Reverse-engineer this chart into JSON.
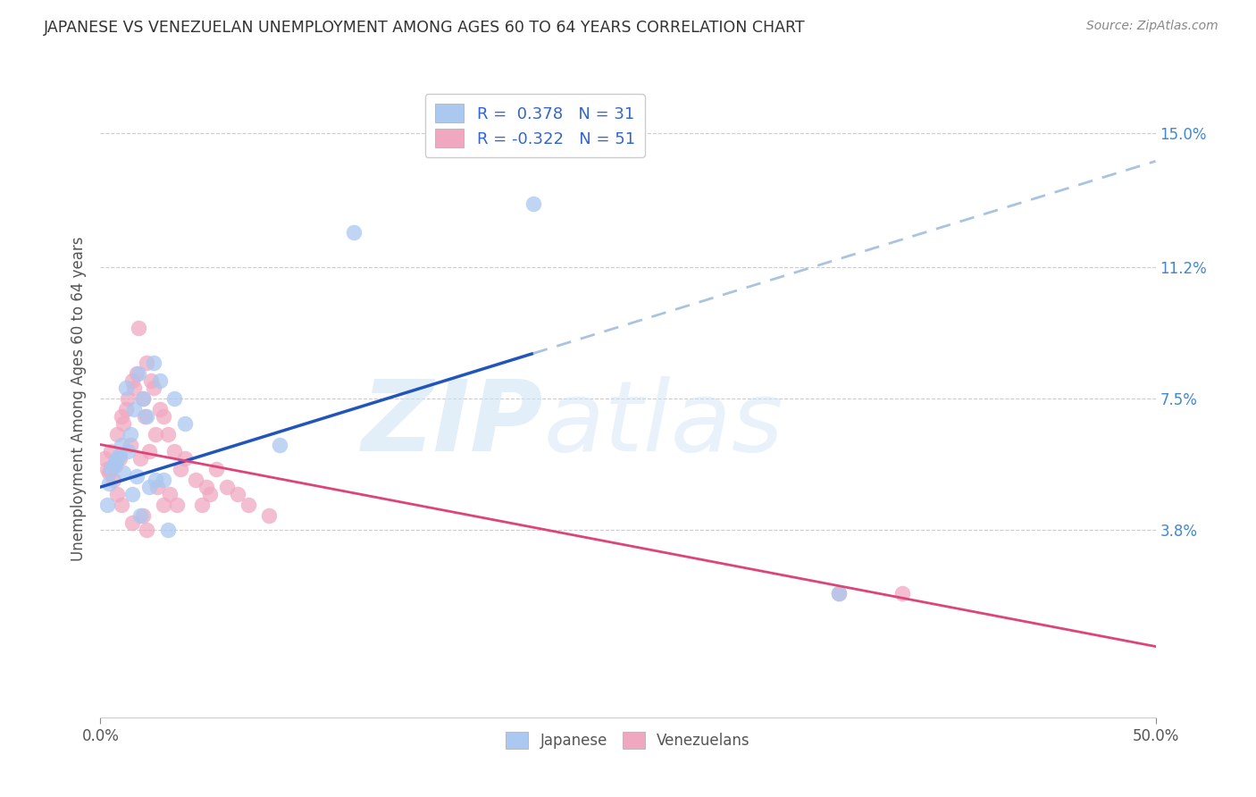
{
  "title": "JAPANESE VS VENEZUELAN UNEMPLOYMENT AMONG AGES 60 TO 64 YEARS CORRELATION CHART",
  "source": "Source: ZipAtlas.com",
  "ylabel": "Unemployment Among Ages 60 to 64 years",
  "ytick_values": [
    3.8,
    7.5,
    11.2,
    15.0
  ],
  "ytick_labels": [
    "3.8%",
    "7.5%",
    "11.2%",
    "15.0%"
  ],
  "xmin": 0.0,
  "xmax": 50.0,
  "ymin": -1.5,
  "ymax": 16.5,
  "legend_label1": "R =  0.378   N = 31",
  "legend_label2": "R = -0.322   N = 51",
  "watermark_zip": "ZIP",
  "watermark_atlas": "atlas",
  "japanese_color": "#aac8f0",
  "venezuelan_color": "#f0a8c0",
  "japanese_line_color": "#2255bb",
  "venezuelan_line_color": "#dd4477",
  "dashed_line_color": "#aac4e0",
  "background_color": "#ffffff",
  "grid_color": "#cccccc",
  "jap_line_x0": 0.0,
  "jap_line_y0": 5.0,
  "jap_line_x1": 50.0,
  "jap_line_y1": 14.2,
  "jap_solid_end": 20.5,
  "ven_line_x0": 0.0,
  "ven_line_y0": 6.2,
  "ven_line_x1": 50.0,
  "ven_line_y1": 0.5,
  "japanese_x": [
    0.5,
    0.8,
    1.0,
    1.2,
    1.4,
    1.6,
    1.8,
    2.0,
    2.2,
    2.5,
    2.8,
    3.0,
    3.5,
    4.0,
    1.1,
    0.6,
    0.9,
    1.3,
    1.7,
    0.4,
    0.7,
    2.3,
    1.5,
    0.3,
    2.6,
    1.9,
    3.2,
    8.5,
    12.0,
    20.5,
    35.0
  ],
  "japanese_y": [
    5.5,
    5.8,
    6.2,
    7.8,
    6.5,
    7.2,
    8.2,
    7.5,
    7.0,
    8.5,
    8.0,
    5.2,
    7.5,
    6.8,
    5.4,
    5.6,
    5.9,
    6.0,
    5.3,
    5.1,
    5.7,
    5.0,
    4.8,
    4.5,
    5.2,
    4.2,
    3.8,
    6.2,
    12.2,
    13.0,
    2.0
  ],
  "venezuelan_x": [
    0.2,
    0.3,
    0.5,
    0.6,
    0.7,
    0.8,
    0.9,
    1.0,
    1.1,
    1.2,
    1.3,
    1.5,
    1.6,
    1.7,
    1.8,
    2.0,
    2.1,
    2.2,
    2.3,
    2.4,
    2.5,
    2.6,
    2.8,
    3.0,
    3.2,
    3.5,
    3.8,
    4.0,
    4.5,
    5.0,
    5.5,
    6.0,
    6.5,
    7.0,
    8.0,
    0.4,
    1.4,
    1.9,
    2.7,
    3.3,
    4.8,
    0.8,
    1.0,
    1.5,
    2.0,
    3.0,
    35.0,
    38.0,
    5.2,
    3.6,
    2.2
  ],
  "venezuelan_y": [
    5.8,
    5.5,
    6.0,
    5.2,
    5.6,
    6.5,
    5.8,
    7.0,
    6.8,
    7.2,
    7.5,
    8.0,
    7.8,
    8.2,
    9.5,
    7.5,
    7.0,
    8.5,
    6.0,
    8.0,
    7.8,
    6.5,
    7.2,
    7.0,
    6.5,
    6.0,
    5.5,
    5.8,
    5.2,
    5.0,
    5.5,
    5.0,
    4.8,
    4.5,
    4.2,
    5.4,
    6.2,
    5.8,
    5.0,
    4.8,
    4.5,
    4.8,
    4.5,
    4.0,
    4.2,
    4.5,
    2.0,
    2.0,
    4.8,
    4.5,
    3.8
  ]
}
